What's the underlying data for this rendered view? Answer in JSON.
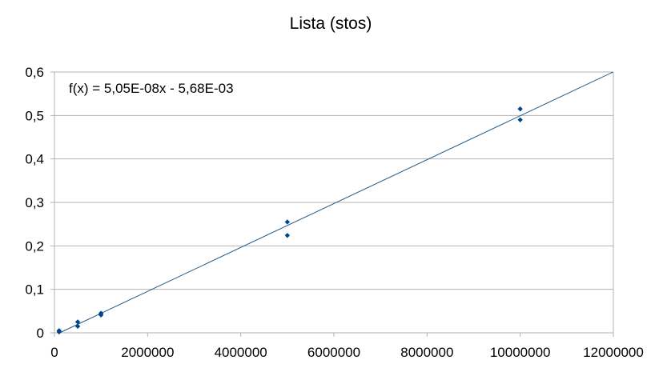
{
  "chart_data": {
    "type": "scatter",
    "title": "Lista (stos)",
    "xlabel": "",
    "ylabel": "",
    "xlim": [
      0,
      12000000
    ],
    "ylim": [
      0,
      0.6
    ],
    "x_ticks": [
      0,
      2000000,
      4000000,
      6000000,
      8000000,
      10000000,
      12000000
    ],
    "x_tick_labels": [
      "0",
      "2000000",
      "4000000",
      "6000000",
      "8000000",
      "10000000",
      "12000000"
    ],
    "y_ticks": [
      0,
      0.1,
      0.2,
      0.3,
      0.4,
      0.5,
      0.6
    ],
    "y_tick_labels": [
      "0",
      "0,1",
      "0,2",
      "0,3",
      "0,4",
      "0,5",
      "0,6"
    ],
    "grid": "horizontal",
    "legend": "none",
    "points": [
      {
        "x": 100000,
        "y": 0.005
      },
      {
        "x": 100000,
        "y": 0.002
      },
      {
        "x": 500000,
        "y": 0.025
      },
      {
        "x": 500000,
        "y": 0.015
      },
      {
        "x": 1000000,
        "y": 0.045
      },
      {
        "x": 1000000,
        "y": 0.041
      },
      {
        "x": 5000000,
        "y": 0.255
      },
      {
        "x": 5000000,
        "y": 0.224
      },
      {
        "x": 10000000,
        "y": 0.515
      },
      {
        "x": 10000000,
        "y": 0.49
      }
    ],
    "trendline": {
      "slope": 5.05e-08,
      "intercept": -0.00568,
      "equation_label": "f(x) = 5,05E-08x - 5,68E-03"
    },
    "colors": {
      "marker": "#004586",
      "trendline": "#1f5a8a",
      "grid": "#b3b3b3",
      "axis": "#b3b3b3",
      "text": "#000000"
    }
  }
}
